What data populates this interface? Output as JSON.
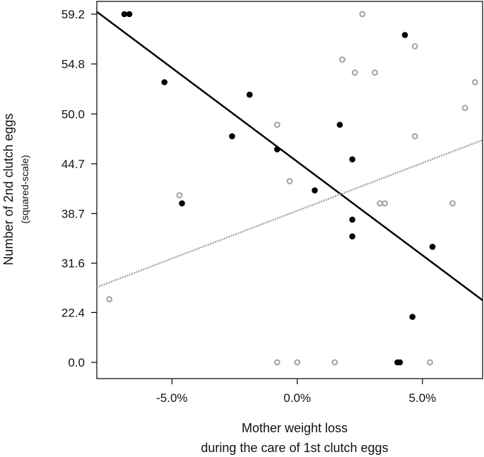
{
  "chart_data": {
    "type": "scatter",
    "title": "",
    "xlabel_line1": "Mother weight loss",
    "xlabel_line2": "during the care of 1st clutch eggs",
    "ylabel_line1": "Number of 2nd clutch eggs",
    "ylabel_line2": "(squared-scale)",
    "x_unit": "%",
    "xlim": [
      -8.0,
      7.4
    ],
    "y_scale": "squared",
    "ylim": [
      0,
      59.2
    ],
    "x_ticks": [
      {
        "value": -5.0,
        "label": "-5.0%"
      },
      {
        "value": 0.0,
        "label": "0.0%"
      },
      {
        "value": 5.0,
        "label": "5.0%"
      }
    ],
    "y_ticks": [
      {
        "value": 0.0,
        "label": "0.0"
      },
      {
        "value": 22.4,
        "label": "22.4"
      },
      {
        "value": 31.6,
        "label": "31.6"
      },
      {
        "value": 38.7,
        "label": "38.7"
      },
      {
        "value": 44.7,
        "label": "44.7"
      },
      {
        "value": 50.0,
        "label": "50.0"
      },
      {
        "value": 54.8,
        "label": "54.8"
      },
      {
        "value": 59.2,
        "label": "59.2"
      }
    ],
    "grid": false,
    "legend": "none",
    "series": [
      {
        "style": "filled",
        "color": "#000000",
        "points": [
          {
            "x": -6.9,
            "y": 59.2
          },
          {
            "x": -6.7,
            "y": 59.2
          },
          {
            "x": -5.3,
            "y": 53.1
          },
          {
            "x": -4.6,
            "y": 40.0
          },
          {
            "x": -2.6,
            "y": 47.7
          },
          {
            "x": -1.9,
            "y": 51.9
          },
          {
            "x": -0.8,
            "y": 46.3
          },
          {
            "x": 0.7,
            "y": 41.6
          },
          {
            "x": 1.7,
            "y": 48.9
          },
          {
            "x": 2.2,
            "y": 45.2
          },
          {
            "x": 2.2,
            "y": 37.9
          },
          {
            "x": 2.2,
            "y": 35.6
          },
          {
            "x": 4.3,
            "y": 57.4
          },
          {
            "x": 5.4,
            "y": 34.1
          },
          {
            "x": 4.6,
            "y": 21.4
          },
          {
            "x": 4.0,
            "y": 0.0
          },
          {
            "x": 4.1,
            "y": 0.0
          }
        ],
        "fit": {
          "x1": -8.0,
          "y1": 59.4,
          "x2": 7.4,
          "y2": 25.0
        }
      },
      {
        "style": "hollow",
        "color": "#9ea3a0",
        "points": [
          {
            "x": 2.6,
            "y": 59.2
          },
          {
            "x": 4.7,
            "y": 56.4
          },
          {
            "x": 1.8,
            "y": 55.2
          },
          {
            "x": 2.3,
            "y": 54.0
          },
          {
            "x": 3.1,
            "y": 54.0
          },
          {
            "x": 7.1,
            "y": 53.1
          },
          {
            "x": 6.7,
            "y": 50.6
          },
          {
            "x": -0.8,
            "y": 48.9
          },
          {
            "x": 4.7,
            "y": 47.7
          },
          {
            "x": -0.3,
            "y": 42.7
          },
          {
            "x": -4.7,
            "y": 41.0
          },
          {
            "x": 3.3,
            "y": 40.0
          },
          {
            "x": 3.5,
            "y": 40.0
          },
          {
            "x": 6.2,
            "y": 40.0
          },
          {
            "x": -7.5,
            "y": 25.2
          },
          {
            "x": -0.8,
            "y": 0.0
          },
          {
            "x": 0.0,
            "y": 0.0
          },
          {
            "x": 1.5,
            "y": 0.0
          },
          {
            "x": 5.3,
            "y": 0.0
          }
        ],
        "fit": {
          "x1": -8.0,
          "y1": 27.5,
          "x2": 7.4,
          "y2": 47.3
        }
      }
    ]
  }
}
